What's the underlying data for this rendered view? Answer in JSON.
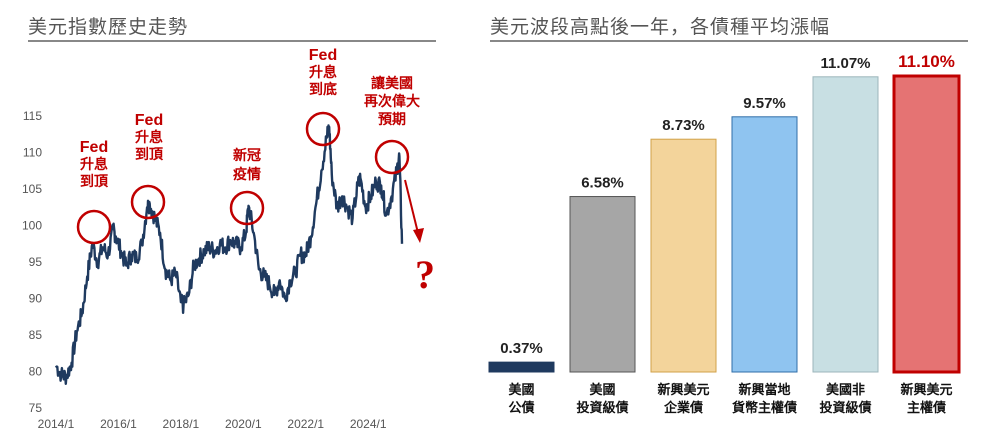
{
  "left_panel": {
    "title": "美元指數歷史走勢"
  },
  "right_panel": {
    "title": "美元波段高點後一年，各債種平均漲幅"
  },
  "chart_data": [
    {
      "type": "line",
      "title": "美元指數歷史走勢",
      "xlabel": "",
      "ylabel": "",
      "xlim": [
        "2014/1",
        "2025/2"
      ],
      "ylim": [
        75,
        115
      ],
      "x_ticks": [
        "2014/1",
        "2016/1",
        "2018/1",
        "2020/1",
        "2022/1",
        "2024/1"
      ],
      "y_ticks": [
        75,
        80,
        85,
        90,
        95,
        100,
        105,
        110,
        115
      ],
      "grid": false,
      "line_color": "#1f3a5f",
      "series": [
        {
          "name": "",
          "x": [
            "2014/1",
            "2014/3",
            "2014/5",
            "2014/7",
            "2014/9",
            "2014/11",
            "2015/1",
            "2015/3",
            "2015/5",
            "2015/7",
            "2015/9",
            "2015/11",
            "2015/12",
            "2016/2",
            "2016/4",
            "2016/6",
            "2016/8",
            "2016/10",
            "2016/12",
            "2017/1",
            "2017/3",
            "2017/5",
            "2017/7",
            "2017/9",
            "2017/11",
            "2018/1",
            "2018/2",
            "2018/4",
            "2018/6",
            "2018/8",
            "2018/10",
            "2018/12",
            "2019/2",
            "2019/4",
            "2019/6",
            "2019/8",
            "2019/10",
            "2019/12",
            "2020/2",
            "2020/3",
            "2020/5",
            "2020/7",
            "2020/9",
            "2020/11",
            "2021/1",
            "2021/3",
            "2021/5",
            "2021/7",
            "2021/9",
            "2021/11",
            "2022/1",
            "2022/3",
            "2022/5",
            "2022/7",
            "2022/9",
            "2022/10",
            "2022/11",
            "2023/1",
            "2023/3",
            "2023/5",
            "2023/7",
            "2023/9",
            "2023/10",
            "2023/12",
            "2024/2",
            "2024/4",
            "2024/6",
            "2024/8",
            "2024/10",
            "2024/12",
            "2025/1",
            "2025/2"
          ],
          "values": [
            80.8,
            79.6,
            79.3,
            81.2,
            85.5,
            88.0,
            93.0,
            97.5,
            95.0,
            97.0,
            96.0,
            99.5,
            98.5,
            96.5,
            94.5,
            96.0,
            95.5,
            97.5,
            102.5,
            103.0,
            101.0,
            99.0,
            94.0,
            92.5,
            93.5,
            89.5,
            89.0,
            90.5,
            94.5,
            95.5,
            96.5,
            97.0,
            96.5,
            97.5,
            97.0,
            98.0,
            97.5,
            97.0,
            99.0,
            102.7,
            99.0,
            94.0,
            93.0,
            92.0,
            90.5,
            92.5,
            90.0,
            92.5,
            93.5,
            96.0,
            96.0,
            98.5,
            103.0,
            107.5,
            112.0,
            113.5,
            107.0,
            102.5,
            104.0,
            102.5,
            101.0,
            105.5,
            106.5,
            102.5,
            104.0,
            106.0,
            105.5,
            101.5,
            104.0,
            107.5,
            109.5,
            97.5
          ]
        }
      ],
      "annotations": [
        {
          "text": [
            "Fed",
            "升息",
            "到頂"
          ]
        },
        {
          "text": [
            "Fed",
            "升息",
            "到頂"
          ]
        },
        {
          "text": [
            "新冠",
            "疫情"
          ]
        },
        {
          "text": [
            "Fed",
            "升息",
            "到底"
          ]
        },
        {
          "text": [
            "讓美國",
            "再次偉大",
            "預期"
          ]
        },
        {
          "text": [
            "?"
          ]
        }
      ]
    },
    {
      "type": "bar",
      "title": "美元波段高點後一年，各債種平均漲幅",
      "unit": "%",
      "ylim": [
        0,
        11.5
      ],
      "categories": [
        [
          "美國",
          "公債"
        ],
        [
          "美國",
          "投資級債"
        ],
        [
          "新興美元",
          "企業債"
        ],
        [
          "新興當地",
          "貨幣主權債"
        ],
        [
          "美國非",
          "投資級債"
        ],
        [
          "新興美元",
          "主權債"
        ]
      ],
      "values": [
        0.37,
        6.58,
        8.73,
        9.57,
        11.07,
        11.1
      ],
      "value_labels": [
        "0.37%",
        "6.58%",
        "8.73%",
        "9.57%",
        "11.07%",
        "11.10%"
      ],
      "colors": [
        "#1f3a5f",
        "#a6a6a6",
        "#f3d49b",
        "#8fc4f0",
        "#c8dfe3",
        "#e57373"
      ],
      "edge_colors": [
        "#1f3a5f",
        "#555555",
        "#d1a24a",
        "#2f6ea8",
        "#9cb6bb",
        "#c00000"
      ],
      "highlight_index": 5,
      "highlight_color": "#c00000"
    }
  ]
}
